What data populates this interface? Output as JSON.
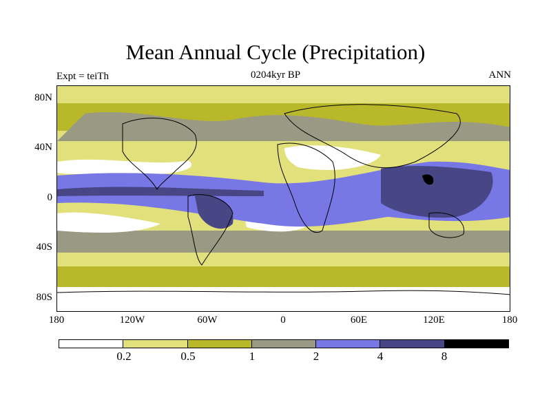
{
  "title": "Mean Annual Cycle (Precipitation)",
  "subtitle": "0204kyr BP",
  "left_label": "Expt = teiTh",
  "right_label": "ANN",
  "lat_labels": [
    "80N",
    "40N",
    "0",
    "40S",
    "80S"
  ],
  "lon_labels": [
    "180",
    "120W",
    "60W",
    "0",
    "60E",
    "120E",
    "180"
  ],
  "colorbar": {
    "colors": [
      "#ffffff",
      "#e2e07a",
      "#b9b82a",
      "#9a9a84",
      "#7777e6",
      "#484685",
      "#000000"
    ],
    "labels": [
      "0.2",
      "0.5",
      "1",
      "2",
      "4",
      "8"
    ]
  },
  "chart_data": {
    "type": "heatmap",
    "title": "Mean Annual Cycle (Precipitation)",
    "subtitle": "0204kyr BP",
    "experiment": "Expt = teiTh",
    "season": "ANN",
    "x_axis": {
      "ticks": [
        "180",
        "120W",
        "60W",
        "0",
        "60E",
        "120E",
        "180"
      ],
      "range": [
        -180,
        180
      ]
    },
    "y_axis": {
      "ticks": [
        "80N",
        "40N",
        "0",
        "40S",
        "80S"
      ],
      "range": [
        -90,
        90
      ]
    },
    "levels": [
      0.2,
      0.5,
      1,
      2,
      4,
      8
    ]
  }
}
